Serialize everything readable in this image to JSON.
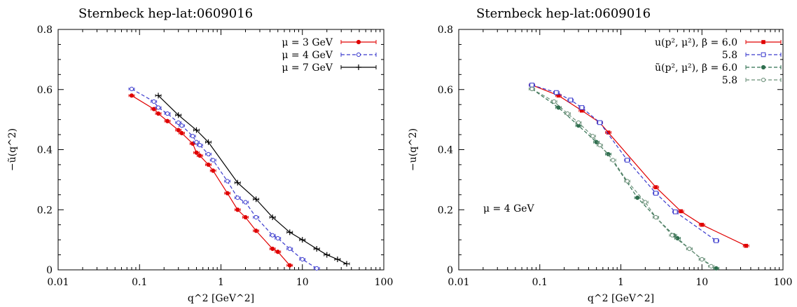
{
  "chart_data": [
    {
      "type": "line",
      "title": "Sternbeck hep-lat:0609016",
      "xlabel": "q^2 [GeV^2]",
      "ylabel": "−ũ(q^2)",
      "xscale": "log",
      "xlim": [
        0.01,
        100
      ],
      "ylim": [
        0,
        0.8
      ],
      "xticks": [
        "0.01",
        "0.1",
        "1",
        "10",
        "100"
      ],
      "yticks": [
        "0",
        "0.2",
        "0.4",
        "0.6",
        "0.8"
      ],
      "legend_position": "top-right",
      "series": [
        {
          "name": "μ = 3 GeV",
          "color": "#e00000",
          "line": "solid",
          "marker": "filled-circle",
          "x": [
            0.08,
            0.15,
            0.17,
            0.22,
            0.3,
            0.33,
            0.45,
            0.5,
            0.55,
            0.7,
            0.8,
            1.2,
            1.6,
            2.0,
            2.7,
            4.3,
            5.0,
            7.0
          ],
          "y": [
            0.58,
            0.535,
            0.52,
            0.495,
            0.465,
            0.455,
            0.42,
            0.39,
            0.38,
            0.35,
            0.33,
            0.255,
            0.2,
            0.175,
            0.13,
            0.07,
            0.06,
            0.015
          ]
        },
        {
          "name": "μ = 4 GeV",
          "color": "#3a3acd",
          "line": "dashed",
          "marker": "open-circle",
          "x": [
            0.08,
            0.15,
            0.17,
            0.22,
            0.3,
            0.33,
            0.45,
            0.5,
            0.55,
            0.7,
            0.8,
            1.2,
            1.6,
            2.0,
            2.7,
            4.3,
            5.0,
            7.0,
            10.0,
            15.0
          ],
          "y": [
            0.602,
            0.56,
            0.54,
            0.52,
            0.49,
            0.48,
            0.445,
            0.425,
            0.415,
            0.385,
            0.365,
            0.295,
            0.24,
            0.225,
            0.175,
            0.115,
            0.105,
            0.07,
            0.035,
            0.005
          ]
        },
        {
          "name": "μ = 7 GeV",
          "color": "#000000",
          "line": "solid",
          "marker": "plus",
          "x": [
            0.17,
            0.3,
            0.5,
            0.7,
            1.6,
            2.7,
            4.3,
            7.0,
            10.0,
            15.0,
            20.0,
            27.0,
            35.0
          ],
          "y": [
            0.58,
            0.515,
            0.465,
            0.425,
            0.29,
            0.235,
            0.175,
            0.125,
            0.1,
            0.07,
            0.05,
            0.035,
            0.02
          ]
        }
      ]
    },
    {
      "type": "line",
      "title": "Sternbeck hep-lat:0609016",
      "xlabel": "q^2 [GeV^2]",
      "ylabel": "−u(q^2)",
      "xscale": "log",
      "xlim": [
        0.01,
        100
      ],
      "ylim": [
        0,
        0.8
      ],
      "xticks": [
        "0.01",
        "0.1",
        "1",
        "10",
        "100"
      ],
      "yticks": [
        "0",
        "0.2",
        "0.4",
        "0.6",
        "0.8"
      ],
      "legend_position": "top-right",
      "annotation": "μ = 4 GeV",
      "series": [
        {
          "name": "u(p², μ²),   β = 6.0",
          "color": "#e00000",
          "line": "solid",
          "marker": "filled-square",
          "x": [
            0.08,
            0.17,
            0.33,
            0.55,
            0.7,
            2.7,
            5.5,
            10.0,
            35.0
          ],
          "y": [
            0.615,
            0.58,
            0.53,
            0.49,
            0.457,
            0.275,
            0.195,
            0.15,
            0.08
          ]
        },
        {
          "name": "5.8",
          "color": "#3a3acd",
          "line": "dashed",
          "marker": "open-square",
          "x": [
            0.08,
            0.16,
            0.24,
            0.33,
            0.55,
            1.2,
            2.7,
            4.7,
            15.0
          ],
          "y": [
            0.615,
            0.59,
            0.565,
            0.54,
            0.49,
            0.365,
            0.255,
            0.193,
            0.097
          ]
        },
        {
          "name": "ũ(p², μ²),   β = 6.0",
          "color": "#2f6f4f",
          "line": "dashed",
          "marker": "filled-circle",
          "x": [
            0.08,
            0.17,
            0.3,
            0.5,
            0.7,
            1.6,
            2.7,
            4.5,
            5.0,
            7.0,
            10.0,
            15.0
          ],
          "y": [
            0.602,
            0.54,
            0.48,
            0.425,
            0.385,
            0.24,
            0.175,
            0.115,
            0.105,
            0.07,
            0.035,
            0.005
          ]
        },
        {
          "name": "5.8",
          "color": "#6a8f78",
          "line": "dashed",
          "marker": "open-circle",
          "x": [
            0.08,
            0.15,
            0.22,
            0.3,
            0.45,
            0.55,
            0.8,
            1.2,
            2.0,
            2.7,
            4.3,
            7.0,
            10.0,
            13.0
          ],
          "y": [
            0.602,
            0.56,
            0.52,
            0.49,
            0.445,
            0.415,
            0.365,
            0.295,
            0.225,
            0.175,
            0.115,
            0.07,
            0.035,
            0.012
          ]
        }
      ]
    }
  ]
}
